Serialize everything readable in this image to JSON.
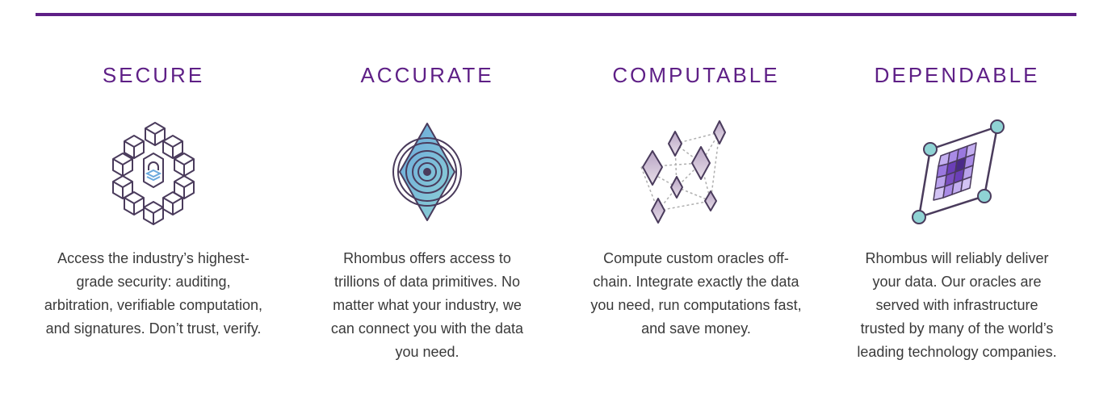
{
  "features": [
    {
      "title": "SECURE",
      "icon": "hex-cube-lock-icon",
      "text": "Access the industry’s highest-grade security: auditing, arbitration, verifiable computation, and signatures. Don’t trust, verify."
    },
    {
      "title": "ACCURATE",
      "icon": "target-diamond-icon",
      "text": "Rhombus offers access to trillions of data primitives. No matter what your industry, we can connect you with the data you need."
    },
    {
      "title": "COMPUTABLE",
      "icon": "connected-diamonds-icon",
      "text": "Compute custom oracles off-chain. Integrate exactly the data you need, run computations fast, and save money."
    },
    {
      "title": "DEPENDABLE",
      "icon": "rhombus-grid-icon",
      "text": "Rhombus will reliably deliver your data. Our oracles are served with infrastructure trusted by many of the world’s leading technology companies."
    }
  ],
  "colors": {
    "accent": "#5e1f86",
    "body_text": "#3a3a3a",
    "icon_stroke": "#4a3b5c",
    "teal": "#8fd3d4",
    "blue": "#6aa8dd",
    "purple": "#7a4fc0"
  }
}
